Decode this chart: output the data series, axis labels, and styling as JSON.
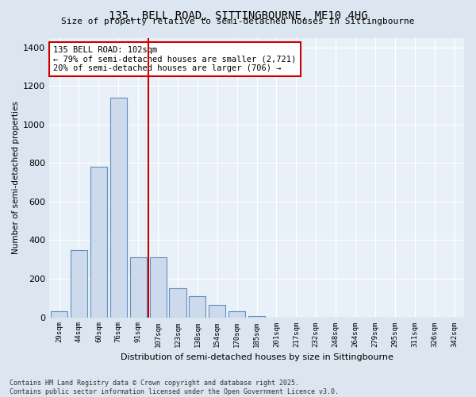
{
  "title": "135, BELL ROAD, SITTINGBOURNE, ME10 4HG",
  "subtitle": "Size of property relative to semi-detached houses in Sittingbourne",
  "xlabel": "Distribution of semi-detached houses by size in Sittingbourne",
  "ylabel": "Number of semi-detached properties",
  "categories": [
    "29sqm",
    "44sqm",
    "60sqm",
    "76sqm",
    "91sqm",
    "107sqm",
    "123sqm",
    "138sqm",
    "154sqm",
    "170sqm",
    "185sqm",
    "201sqm",
    "217sqm",
    "232sqm",
    "248sqm",
    "264sqm",
    "279sqm",
    "295sqm",
    "311sqm",
    "326sqm",
    "342sqm"
  ],
  "values": [
    30,
    350,
    780,
    1140,
    310,
    310,
    150,
    110,
    65,
    30,
    5,
    0,
    0,
    0,
    0,
    0,
    0,
    0,
    0,
    0,
    0
  ],
  "bar_color": "#cddaeb",
  "bar_edge_color": "#6090c0",
  "annotation_title": "135 BELL ROAD: 102sqm",
  "annotation_line1": "← 79% of semi-detached houses are smaller (2,721)",
  "annotation_line2": "20% of semi-detached houses are larger (706) →",
  "vline_color": "#cc0000",
  "vline_x": 4.5,
  "ylim": [
    0,
    1450
  ],
  "yticks": [
    0,
    200,
    400,
    600,
    800,
    1000,
    1200,
    1400
  ],
  "footer1": "Contains HM Land Registry data © Crown copyright and database right 2025.",
  "footer2": "Contains public sector information licensed under the Open Government Licence v3.0.",
  "bg_color": "#dce6f0",
  "plot_bg_color": "#e8f0f8"
}
